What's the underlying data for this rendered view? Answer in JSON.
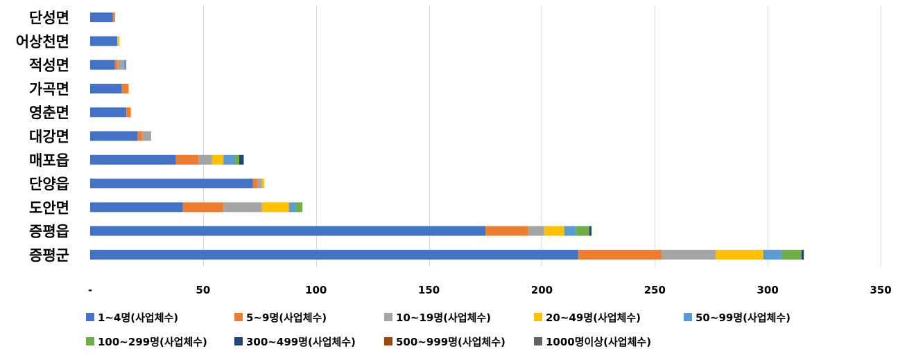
{
  "chart_data": {
    "type": "bar",
    "orientation": "horizontal",
    "stacked": true,
    "categories": [
      "단성면",
      "어상천면",
      "적성면",
      "가곡면",
      "영춘면",
      "대강면",
      "매포읍",
      "단양읍",
      "도안면",
      "증평읍",
      "증평군"
    ],
    "series": [
      {
        "name": "1~4명(사업체수)",
        "color": "#4472C4",
        "values": [
          10,
          12,
          11,
          14,
          16,
          21,
          38,
          72,
          41,
          175,
          216
        ]
      },
      {
        "name": "5~9명(사업체수)",
        "color": "#ED7D31",
        "values": [
          1,
          0,
          1,
          3,
          2,
          2,
          10,
          2,
          18,
          19,
          37
        ]
      },
      {
        "name": "10~19명(사업체수)",
        "color": "#A5A5A5",
        "values": [
          0,
          0,
          3,
          0,
          0,
          4,
          6,
          2,
          17,
          7,
          24
        ]
      },
      {
        "name": "20~49명(사업체수)",
        "color": "#FFC000",
        "values": [
          0,
          1,
          0,
          0,
          0,
          0,
          5,
          1,
          12,
          9,
          21
        ]
      },
      {
        "name": "50~99명(사업체수)",
        "color": "#5B9BD5",
        "values": [
          0,
          0,
          1,
          0,
          0,
          0,
          5,
          0,
          3,
          5,
          8
        ]
      },
      {
        "name": "100~299명(사업체수)",
        "color": "#70AD47",
        "values": [
          0,
          0,
          0,
          0,
          0,
          0,
          2,
          0,
          3,
          6,
          9
        ]
      },
      {
        "name": "300~499명(사업체수)",
        "color": "#264478",
        "values": [
          0,
          0,
          0,
          0,
          0,
          0,
          2,
          0,
          0,
          1,
          1
        ]
      },
      {
        "name": "500~999명(사업체수)",
        "color": "#9E480E",
        "values": [
          0,
          0,
          0,
          0,
          0,
          0,
          0,
          0,
          0,
          0,
          0
        ]
      },
      {
        "name": "1000명이상(사업체수)",
        "color": "#636363",
        "values": [
          0,
          0,
          0,
          0,
          0,
          0,
          0,
          0,
          0,
          0,
          0
        ]
      }
    ],
    "title": "",
    "xlabel": "",
    "ylabel": "",
    "xlim": [
      0,
      350
    ],
    "x_ticks": [
      0,
      50,
      100,
      150,
      200,
      250,
      300,
      350
    ],
    "x_tick_labels": [
      "-",
      "50",
      "100",
      "150",
      "200",
      "250",
      "300",
      "350"
    ],
    "grid": "vertical",
    "legend_position": "bottom"
  }
}
